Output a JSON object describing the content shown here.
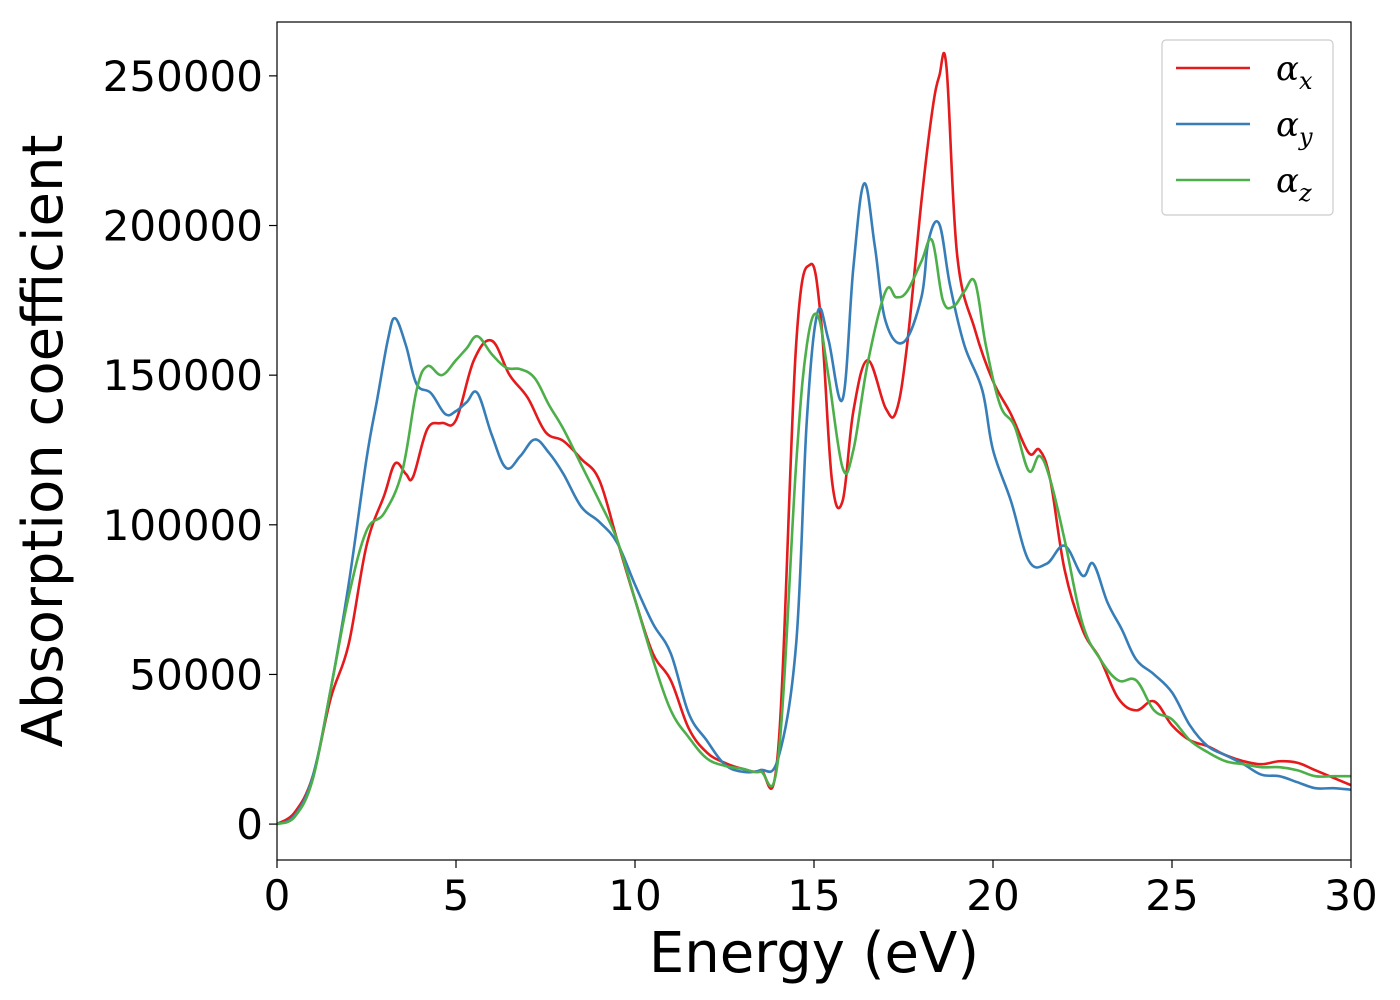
{
  "chart_data": {
    "type": "line",
    "xlabel": "Energy (eV)",
    "ylabel": "Absorption coefficient",
    "xlim": [
      0,
      30
    ],
    "ylim": [
      -12000,
      268000
    ],
    "xticks": [
      0,
      5,
      10,
      15,
      20,
      25,
      30
    ],
    "xtick_labels": [
      "0",
      "5",
      "10",
      "15",
      "20",
      "25",
      "30"
    ],
    "yticks": [
      0,
      50000,
      100000,
      150000,
      200000,
      250000
    ],
    "ytick_labels": [
      "0",
      "50000",
      "100000",
      "150000",
      "200000",
      "250000"
    ],
    "grid": false,
    "legend_position": "top-right",
    "series": [
      {
        "name": "α",
        "subscript": "x",
        "color": "#e41a1c",
        "x": [
          0,
          0.5,
          1,
          1.5,
          2,
          2.5,
          3,
          3.3,
          3.6,
          3.8,
          4.2,
          4.6,
          5,
          5.5,
          6,
          6.5,
          7,
          7.5,
          8,
          8.5,
          9,
          9.5,
          10,
          10.5,
          11,
          11.5,
          12,
          12.5,
          13,
          13.5,
          14,
          14.5,
          14.9,
          15.2,
          15.5,
          15.8,
          16.1,
          16.5,
          17,
          17.3,
          17.6,
          18,
          18.3,
          18.5,
          18.7,
          19,
          19.5,
          20,
          20.5,
          21,
          21.3,
          21.6,
          22,
          22.5,
          23,
          23.5,
          24,
          24.5,
          25,
          25.5,
          26,
          26.5,
          27,
          27.5,
          28,
          28.5,
          29,
          29.5,
          30
        ],
        "y": [
          0,
          4000,
          16000,
          42000,
          60000,
          93000,
          110000,
          120500,
          117000,
          116000,
          132000,
          134000,
          135000,
          155000,
          161500,
          150000,
          142500,
          131000,
          128000,
          122000,
          115000,
          95000,
          75000,
          57000,
          48000,
          32000,
          24000,
          20500,
          18500,
          18000,
          25000,
          160000,
          187000,
          168000,
          115000,
          108000,
          138000,
          155000,
          139000,
          138000,
          160000,
          208000,
          238000,
          250000,
          253000,
          190000,
          165000,
          148000,
          137000,
          124000,
          125000,
          115000,
          85000,
          65000,
          55000,
          42000,
          38000,
          41000,
          33000,
          28000,
          26000,
          23000,
          21000,
          20000,
          21000,
          20500,
          18000,
          15500,
          13000
        ]
      },
      {
        "name": "α",
        "subscript": "y",
        "color": "#377eb8",
        "x": [
          0,
          0.5,
          1,
          1.5,
          2,
          2.5,
          2.8,
          3.1,
          3.3,
          3.6,
          3.9,
          4.3,
          4.7,
          5,
          5.3,
          5.6,
          6,
          6.4,
          6.8,
          7.2,
          7.6,
          8,
          8.5,
          9,
          9.5,
          10,
          10.5,
          11,
          11.5,
          12,
          12.5,
          13,
          13.5,
          14,
          14.5,
          14.8,
          15.1,
          15.4,
          15.8,
          16.1,
          16.4,
          16.7,
          17,
          17.5,
          18,
          18.2,
          18.5,
          18.8,
          19.2,
          19.7,
          20,
          20.5,
          21,
          21.5,
          22,
          22.5,
          22.8,
          23.2,
          23.6,
          24,
          24.5,
          25,
          25.5,
          26,
          26.5,
          27,
          27.5,
          28,
          28.5,
          29,
          29.5,
          30
        ],
        "y": [
          0,
          3000,
          16000,
          45000,
          80000,
          122000,
          142000,
          162000,
          169000,
          160000,
          147000,
          144000,
          137000,
          138000,
          141000,
          144000,
          130000,
          119000,
          123000,
          128500,
          124000,
          117000,
          106000,
          101000,
          94000,
          80000,
          67000,
          57000,
          37000,
          28000,
          20000,
          17500,
          18000,
          22000,
          60000,
          135000,
          171000,
          162000,
          142000,
          186000,
          214000,
          193000,
          168000,
          161000,
          176000,
          195000,
          200500,
          180000,
          160000,
          145000,
          125000,
          108000,
          88000,
          87000,
          93000,
          83000,
          87000,
          74000,
          65000,
          55000,
          50000,
          44000,
          33000,
          26000,
          23000,
          20000,
          16500,
          16000,
          14000,
          12000,
          12000,
          11500
        ]
      },
      {
        "name": "α",
        "subscript": "z",
        "color": "#4daf4a",
        "x": [
          0,
          0.5,
          1,
          1.5,
          2,
          2.5,
          3,
          3.5,
          3.9,
          4.2,
          4.6,
          5,
          5.3,
          5.6,
          6,
          6.4,
          6.8,
          7.2,
          7.6,
          8,
          8.5,
          9,
          9.5,
          10,
          10.5,
          11,
          11.5,
          12,
          12.5,
          13,
          13.5,
          14,
          14.5,
          14.8,
          15.1,
          15.4,
          15.8,
          16.1,
          16.5,
          17,
          17.3,
          17.6,
          18,
          18.3,
          18.6,
          18.9,
          19.2,
          19.5,
          19.8,
          20.2,
          20.6,
          21,
          21.3,
          21.6,
          22,
          22.5,
          23,
          23.5,
          24,
          24.5,
          25,
          25.5,
          26,
          26.5,
          27,
          27.5,
          28,
          28.5,
          29,
          29.5,
          30
        ],
        "y": [
          0,
          2500,
          15000,
          45000,
          76000,
          98000,
          104000,
          118000,
          145000,
          153000,
          150000,
          155000,
          159000,
          163000,
          157000,
          152500,
          152000,
          149000,
          140000,
          132000,
          120000,
          108000,
          95000,
          75000,
          55000,
          38000,
          29000,
          22000,
          19500,
          18500,
          17500,
          22000,
          120000,
          160000,
          170000,
          150000,
          119000,
          125000,
          154000,
          178000,
          176000,
          178000,
          188000,
          195000,
          175000,
          173000,
          178000,
          181000,
          160000,
          140000,
          133000,
          118000,
          123000,
          115000,
          95000,
          67000,
          55000,
          48000,
          48000,
          38000,
          35000,
          28000,
          24000,
          21000,
          20000,
          19000,
          19000,
          18000,
          16000,
          16000,
          16000
        ]
      }
    ]
  }
}
